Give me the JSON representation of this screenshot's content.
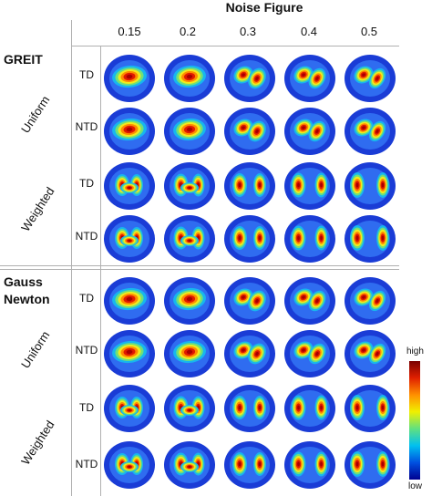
{
  "title": "Noise Figure",
  "columns": [
    "0.15",
    "0.2",
    "0.3",
    "0.4",
    "0.5"
  ],
  "sections": [
    {
      "name": "GREIT",
      "groups": [
        {
          "name": "Uniform",
          "rows": [
            "TD",
            "NTD"
          ]
        },
        {
          "name": "Weighted",
          "rows": [
            "TD",
            "NTD"
          ]
        }
      ]
    },
    {
      "name": "Gauss\nNewton",
      "groups": [
        {
          "name": "Uniform",
          "rows": [
            "TD",
            "NTD"
          ]
        },
        {
          "name": "Weighted",
          "rows": [
            "TD",
            "NTD"
          ]
        }
      ]
    }
  ],
  "colorbar": {
    "high_label": "high",
    "low_label": "low"
  },
  "colors": {
    "background_blue": "#1a3cd6",
    "hot_red": "#d40000",
    "grid_line": "#b0b0b0"
  }
}
